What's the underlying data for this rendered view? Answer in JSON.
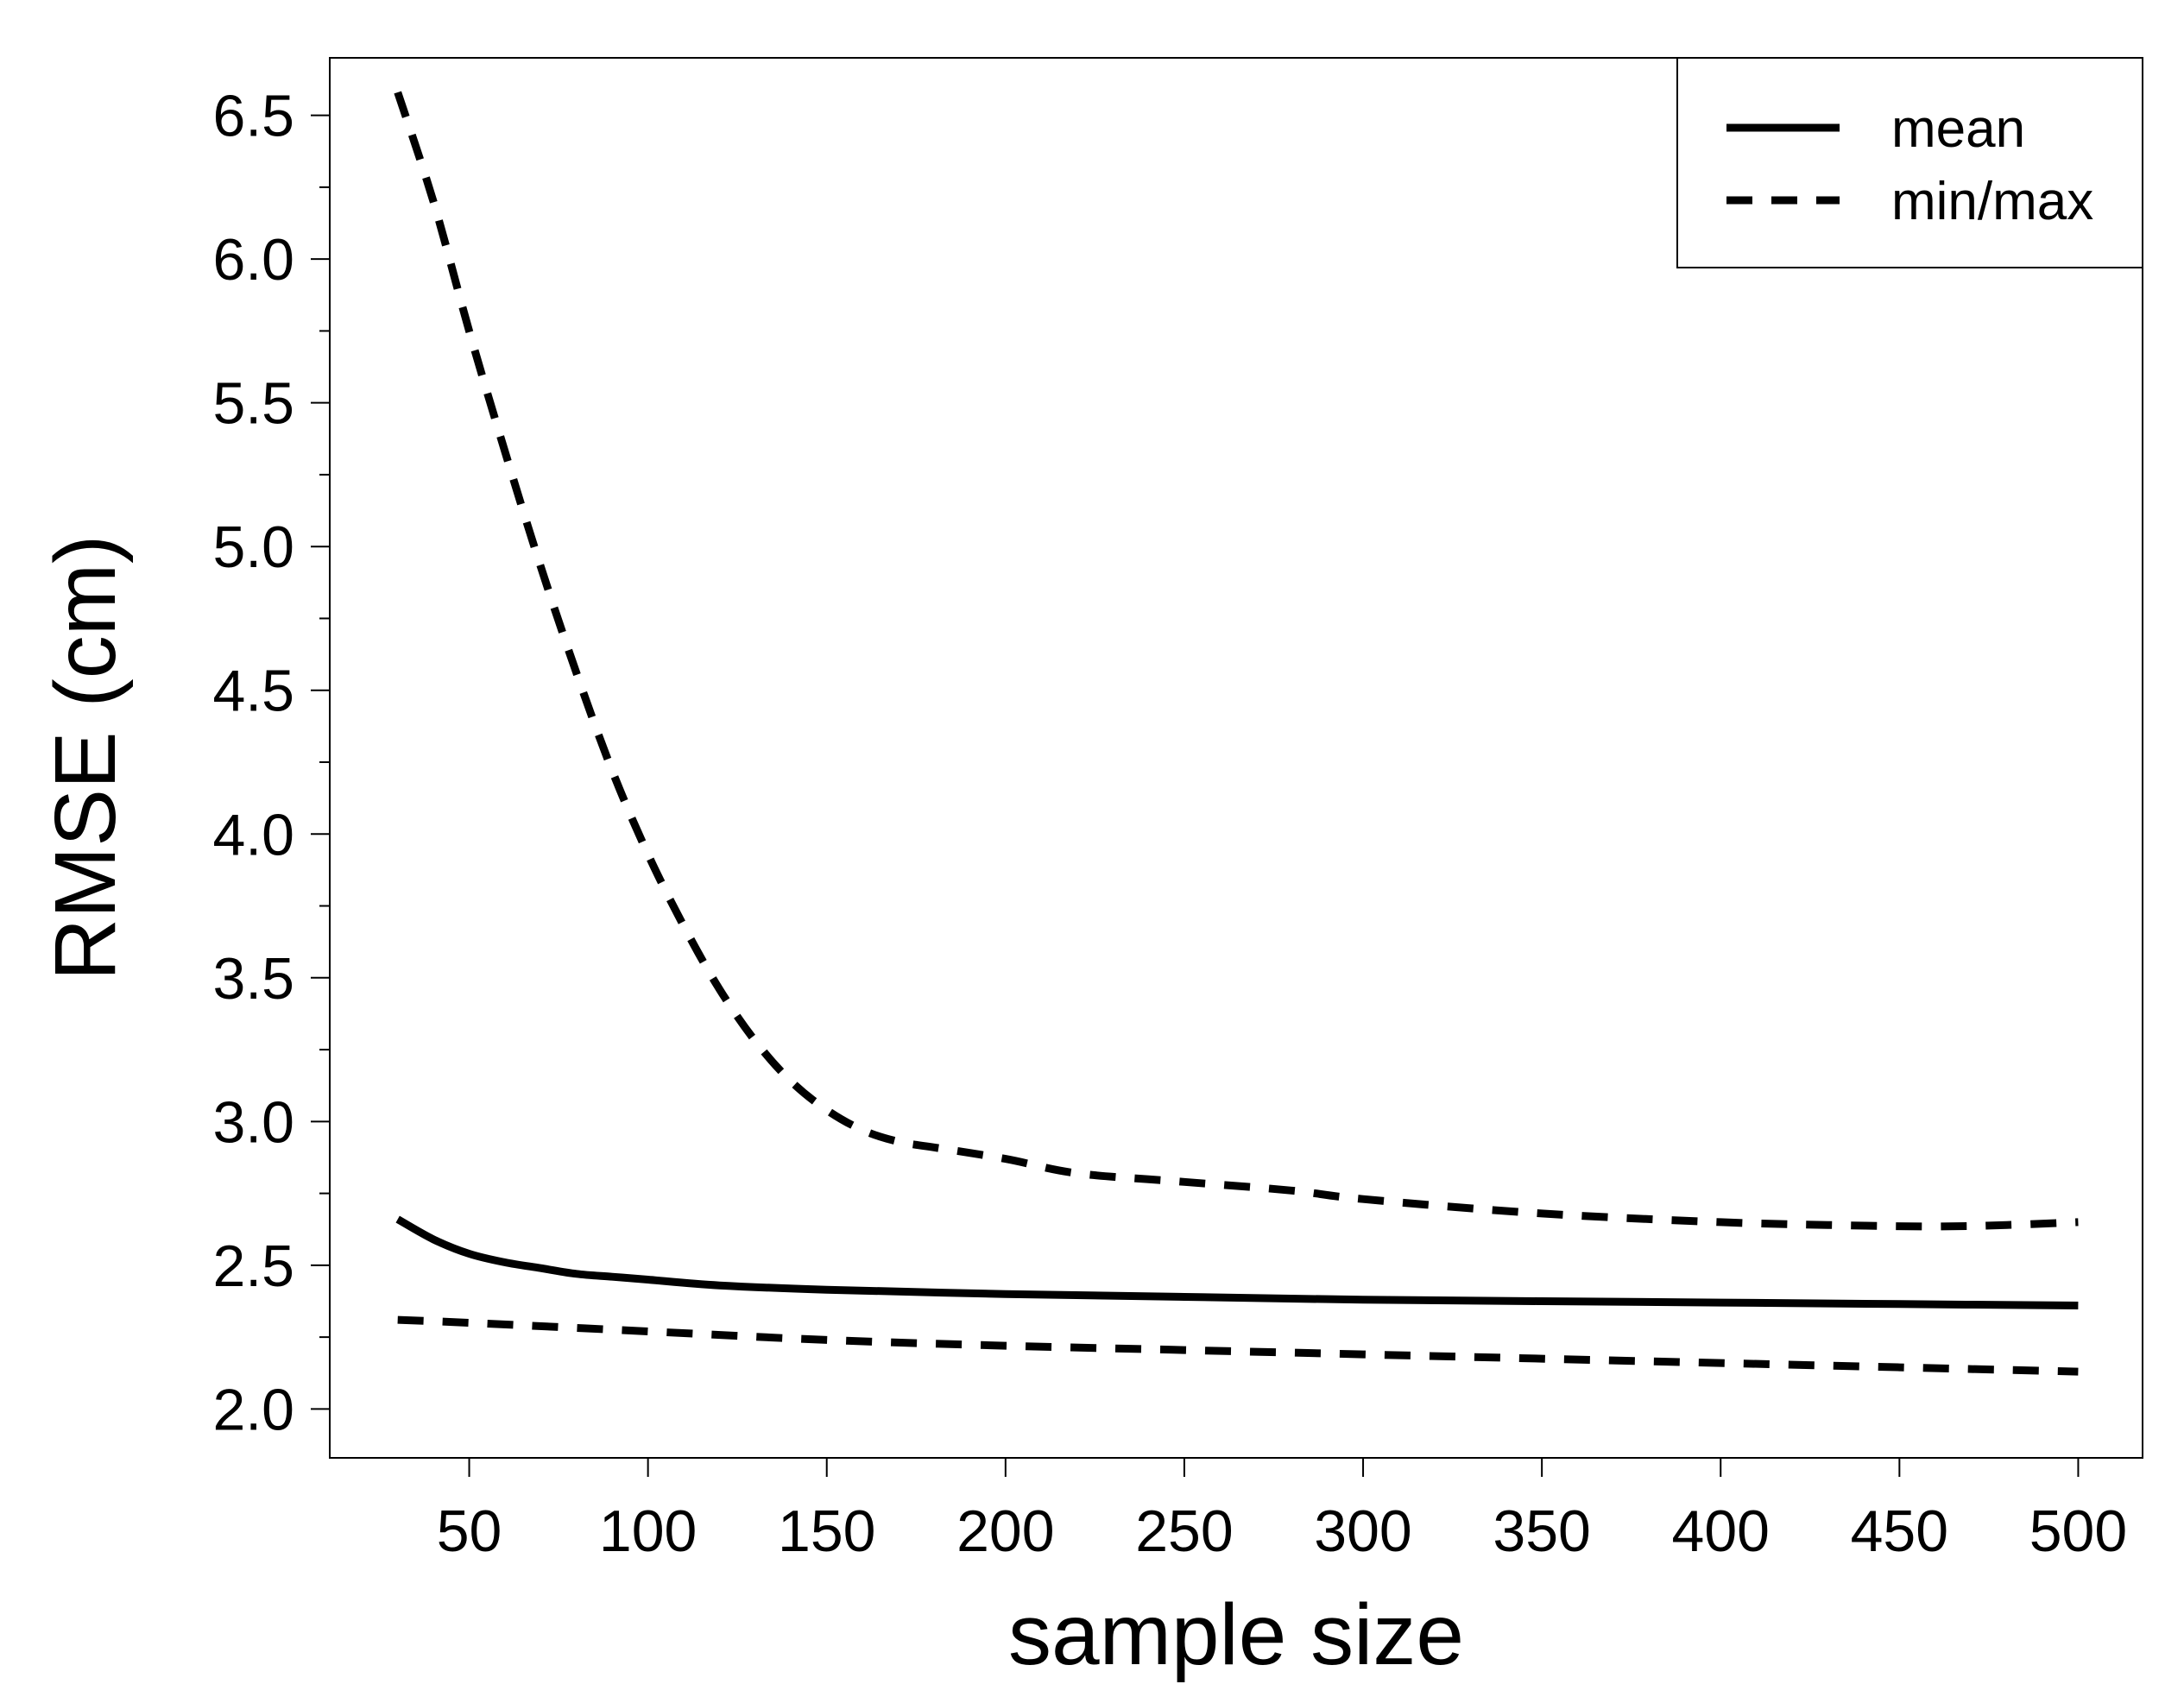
{
  "chart_data": {
    "type": "line",
    "title": "",
    "xlabel": "sample size",
    "ylabel": "RMSE (cm)",
    "xlim": [
      11,
      518
    ],
    "ylim": [
      1.83,
      6.7
    ],
    "x_ticks": [
      50,
      100,
      150,
      200,
      250,
      300,
      350,
      400,
      450,
      500
    ],
    "x_tick_labels": [
      "50",
      "100",
      "150",
      "200",
      "250",
      "300",
      "350",
      "400",
      "450",
      "500"
    ],
    "y_ticks": [
      2.0,
      2.5,
      3.0,
      3.5,
      4.0,
      4.5,
      5.0,
      5.5,
      6.0,
      6.5
    ],
    "y_tick_labels": [
      "2.0",
      "2.5",
      "3.0",
      "3.5",
      "4.0",
      "4.5",
      "5.0",
      "5.5",
      "6.0",
      "6.5"
    ],
    "y_minor_ticks": [
      2.25,
      2.75,
      3.25,
      3.75,
      4.25,
      4.75,
      5.25,
      5.75,
      6.25
    ],
    "grid": false,
    "legend_position": "top-right",
    "legend": [
      {
        "label": "mean",
        "style": "solid"
      },
      {
        "label": "min/max",
        "style": "dashed"
      }
    ],
    "series": [
      {
        "name": "mean",
        "style": "solid",
        "x": [
          30,
          40,
          50,
          60,
          70,
          80,
          90,
          100,
          120,
          150,
          200,
          250,
          300,
          350,
          400,
          450,
          500
        ],
        "y": [
          2.66,
          2.59,
          2.54,
          2.51,
          2.49,
          2.47,
          2.46,
          2.45,
          2.43,
          2.415,
          2.4,
          2.39,
          2.38,
          2.375,
          2.37,
          2.365,
          2.36
        ]
      },
      {
        "name": "max",
        "style": "dashed",
        "x": [
          30,
          40,
          50,
          60,
          70,
          80,
          90,
          100,
          110,
          120,
          130,
          140,
          150,
          160,
          170,
          180,
          200,
          220,
          250,
          280,
          300,
          350,
          400,
          430,
          460,
          480,
          500
        ],
        "y": [
          6.58,
          6.2,
          5.75,
          5.33,
          4.93,
          4.56,
          4.22,
          3.93,
          3.68,
          3.46,
          3.28,
          3.14,
          3.04,
          2.97,
          2.93,
          2.91,
          2.87,
          2.82,
          2.79,
          2.76,
          2.73,
          2.68,
          2.65,
          2.64,
          2.635,
          2.64,
          2.65
        ]
      },
      {
        "name": "min",
        "style": "dashed",
        "x": [
          30,
          50,
          100,
          150,
          200,
          250,
          300,
          350,
          400,
          450,
          500
        ],
        "y": [
          2.31,
          2.3,
          2.27,
          2.24,
          2.22,
          2.205,
          2.19,
          2.175,
          2.16,
          2.145,
          2.13
        ]
      }
    ]
  }
}
